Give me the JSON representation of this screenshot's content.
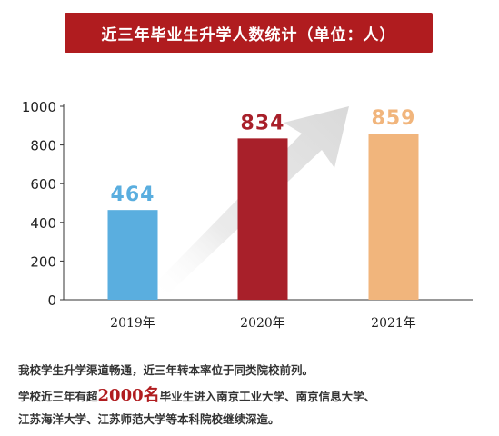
{
  "title": "近三年毕业生升学人数统计（单位：人）",
  "chart_data": {
    "type": "bar",
    "categories": [
      "2019年",
      "2020年",
      "2021年"
    ],
    "values": [
      464,
      834,
      859
    ],
    "data_labels": [
      "464",
      "834",
      "859"
    ],
    "yticks": [
      "0",
      "200",
      "400",
      "600",
      "800",
      "1000"
    ],
    "ylim": [
      0,
      1000
    ],
    "colors": [
      "#5aaedf",
      "#a8202a",
      "#f1b57c"
    ],
    "arrow": "trend-up"
  },
  "caption": {
    "line1": "我校学生升学渠道畅通，近三年转本率位于同类院校前列。",
    "line2_prefix": "学校近三年有超",
    "line2_highlight": "2000名",
    "line2_suffix": "毕业生进入南京工业大学、南京信息大学、",
    "line3": "江苏海洋大学、江苏师范大学等本科院校继续深造。"
  }
}
